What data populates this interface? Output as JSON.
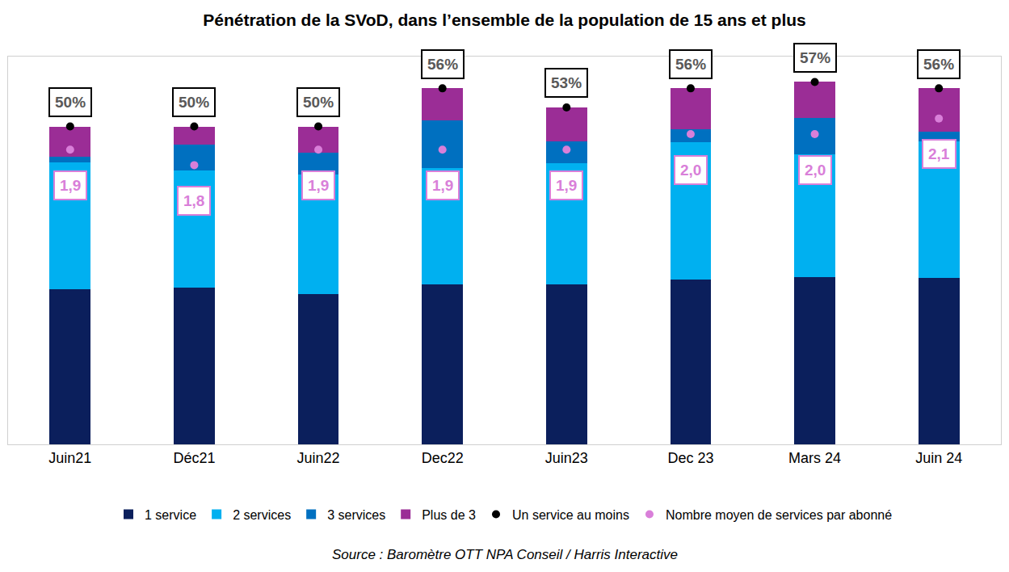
{
  "chart_data": {
    "type": "bar",
    "title": "Pénétration de la SVoD, dans l’ensemble de la population de 15 ans et plus",
    "source": "Source : Baromètre OTT NPA Conseil / Harris Interactive",
    "categories": [
      "Juin21",
      "Déc21",
      "Juin22",
      "Dec22",
      "Juin23",
      "Dec 23",
      "Mars 24",
      "Juin 24"
    ],
    "stacked": true,
    "data_labels": true,
    "grid": false,
    "legend": "bottom",
    "tick_labels": "x",
    "ylim": [
      0,
      61
    ],
    "yticks": [],
    "y2lim": [
      0,
      2.5
    ],
    "y2ticks": [],
    "series": [
      {
        "name": "1 service",
        "type": "bar",
        "color": "#0b1f5c",
        "values": [
          24.4,
          24.7,
          23.7,
          25.1,
          25.2,
          25.9,
          26.3,
          26.2
        ]
      },
      {
        "name": "2 services",
        "type": "bar",
        "color": "#00b0f0",
        "values": [
          20.0,
          18.4,
          18.7,
          18.4,
          19.0,
          21.6,
          19.3,
          21.5
        ]
      },
      {
        "name": "3 services",
        "type": "bar",
        "color": "#0070c0",
        "values": [
          0.8,
          4.0,
          3.5,
          7.5,
          3.5,
          2.0,
          5.7,
          1.5
        ]
      },
      {
        "name": "Plus de 3",
        "type": "bar",
        "color": "#9b2d96",
        "values": [
          4.8,
          2.9,
          4.1,
          5.0,
          5.3,
          6.5,
          5.7,
          6.8
        ]
      },
      {
        "name": "Un service au moins",
        "type": "scatter",
        "marker": "circle",
        "color": "#000000",
        "values": [
          50,
          50,
          50,
          56,
          53,
          56,
          57,
          56
        ],
        "value_labels": [
          "50%",
          "50%",
          "50%",
          "56%",
          "53%",
          "56%",
          "57%",
          "56%"
        ]
      },
      {
        "name": "Nombre moyen de services par abonné",
        "type": "scatter",
        "marker": "circle",
        "color": "#d97fd9",
        "axis": "y2",
        "values": [
          1.9,
          1.8,
          1.9,
          1.9,
          1.9,
          2.0,
          2.0,
          2.1
        ],
        "value_labels": [
          "1,9",
          "1,8",
          "1,9",
          "1,9",
          "1,9",
          "2,0",
          "2,0",
          "2,1"
        ]
      }
    ]
  }
}
